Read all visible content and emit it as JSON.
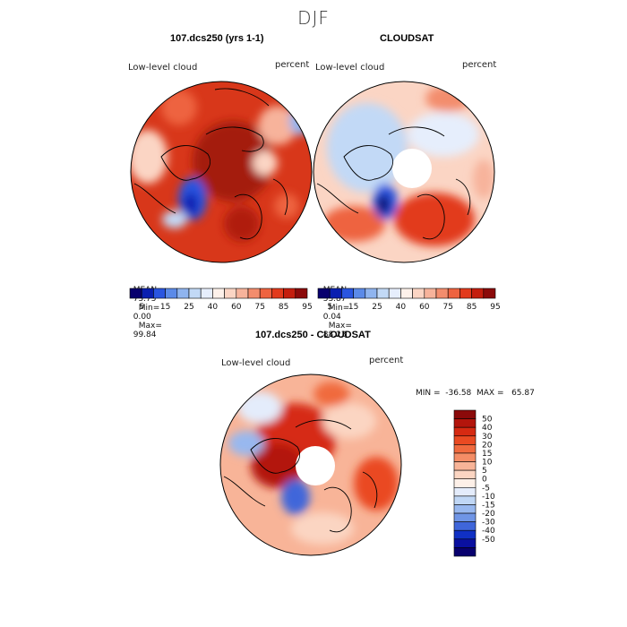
{
  "figure": {
    "season": "DJF"
  },
  "panels": [
    {
      "title": "107.dcs250 (yrs 1-1)",
      "variable": "Low-level cloud",
      "units": "percent",
      "stats": {
        "mean": "75.75",
        "min": "0.00",
        "max": "99.84"
      }
    },
    {
      "title": "CLOUDSAT",
      "variable": "Low-level cloud",
      "units": "percent",
      "stats": {
        "mean": "53.87",
        "min": "0.04",
        "max": "88.23"
      }
    },
    {
      "title": "107.dcs250 - CLOUDSAT",
      "variable": "Low-level cloud",
      "units": "percent",
      "minmax": "MIN =  -36.58  MAX =   65.87"
    }
  ],
  "stat_labels": {
    "mean": "MEAN=",
    "min": "Min=",
    "max": "Max="
  },
  "colorbar_abs": {
    "labels": [
      "5",
      "15",
      "25",
      "40",
      "60",
      "75",
      "85",
      "95"
    ],
    "colors": [
      "#08006e",
      "#0a1fb0",
      "#2a55e0",
      "#5b8ae8",
      "#8fb4ef",
      "#c2d9f6",
      "#e6eefc",
      "#fdf1ea",
      "#fbd5c4",
      "#f7b39b",
      "#f38d6d",
      "#ee6340",
      "#e23a1c",
      "#c41e0e",
      "#8b0a0a"
    ]
  },
  "colorbar_diff": {
    "labels": [
      "50",
      "40",
      "30",
      "20",
      "15",
      "10",
      "5",
      "0",
      "-5",
      "-10",
      "-15",
      "-20",
      "-30",
      "-40",
      "-50"
    ],
    "colors": [
      "#8b0a0a",
      "#b3150c",
      "#d62a12",
      "#ea4a22",
      "#f06a3e",
      "#f48d66",
      "#f8b498",
      "#fbd5c2",
      "#fdf0e8",
      "#e4ecfb",
      "#c0d7f5",
      "#98b8ef",
      "#6f95e6",
      "#3f66da",
      "#1030c4",
      "#0a10a0",
      "#08006e"
    ]
  }
}
